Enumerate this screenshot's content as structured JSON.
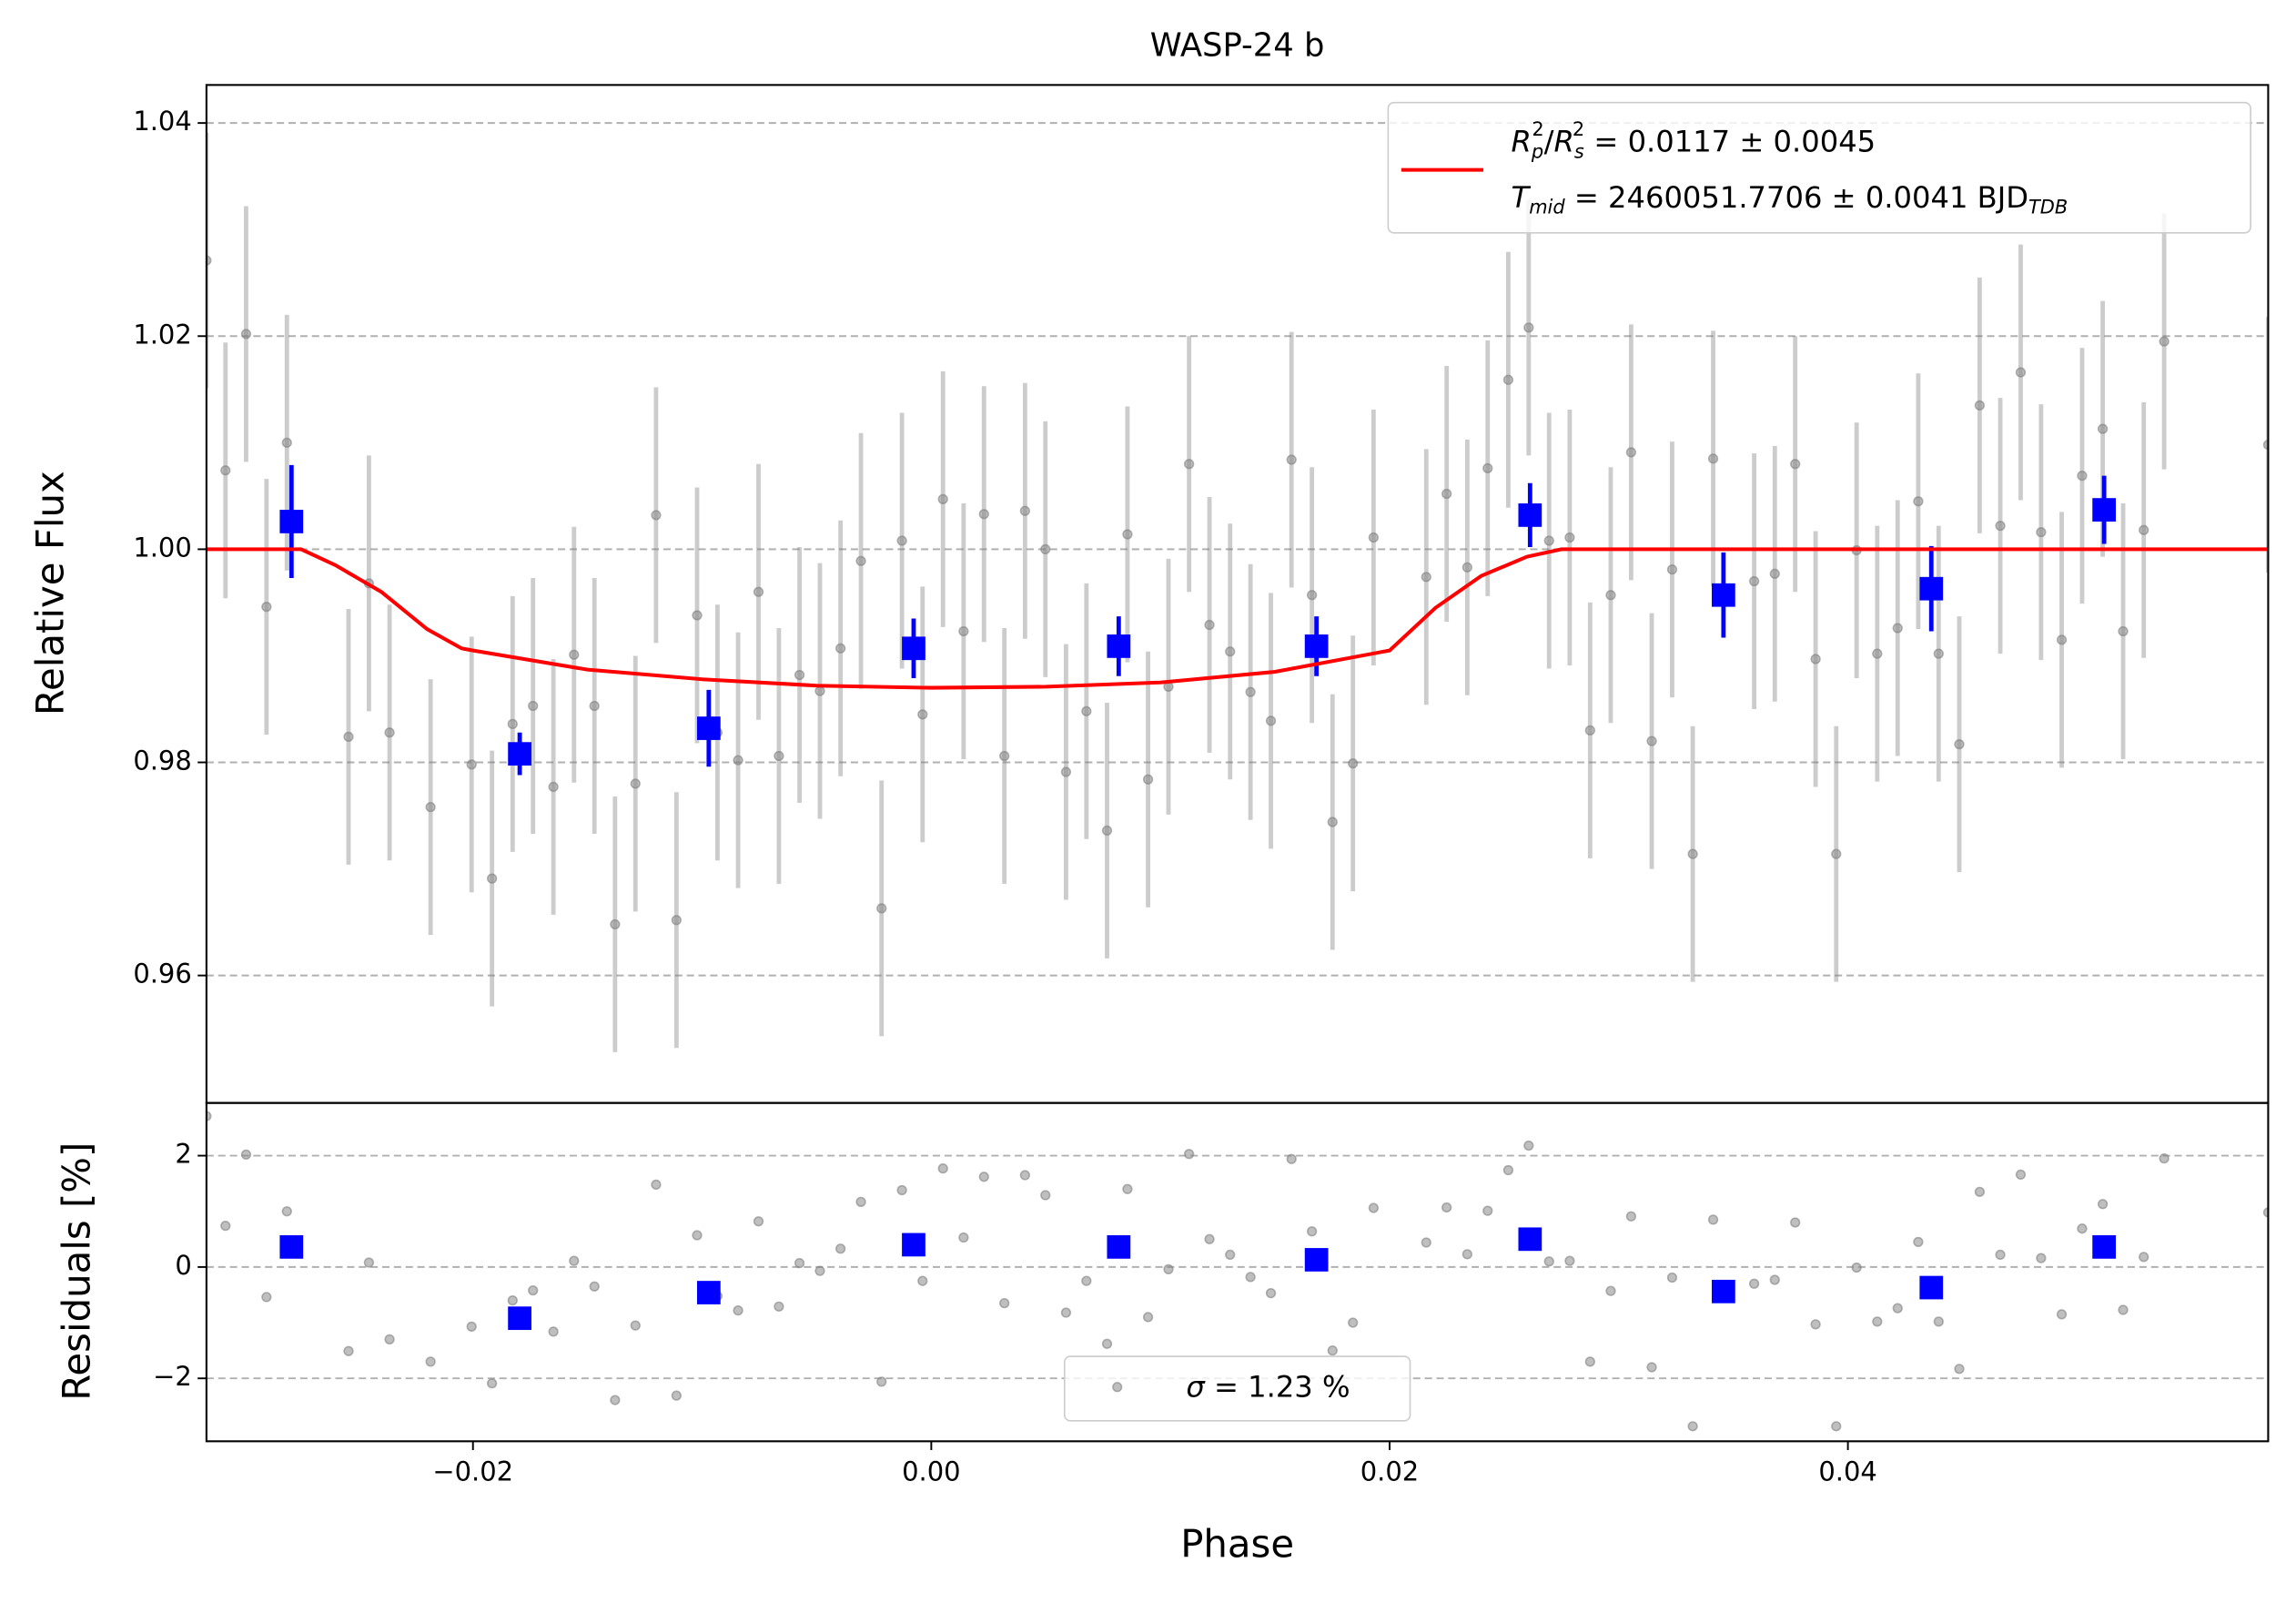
{
  "chart_data": [
    {
      "type": "scatter",
      "title": "WASP-24 b",
      "ylabel": "Relative Flux",
      "xlim": [
        -0.03163,
        0.05834
      ],
      "ylim": [
        0.94804,
        1.04357
      ],
      "yticks": [
        {
          "value": 0.96,
          "label": "0.96"
        },
        {
          "value": 0.98,
          "label": "0.98"
        },
        {
          "value": 1.0,
          "label": "1.00"
        },
        {
          "value": 1.02,
          "label": "1.02"
        },
        {
          "value": 1.04,
          "label": "1.04"
        }
      ],
      "grid": true,
      "legend_loc": "upper right",
      "series": [
        {
          "kind": "points",
          "color": "#808080",
          "x": [
            -0.03163,
            -0.0308,
            -0.0299,
            -0.02901,
            -0.02812,
            -0.02543,
            -0.02454,
            -0.02364,
            -0.02185,
            -0.02006,
            -0.01917,
            -0.01827,
            -0.01738,
            -0.01649,
            -0.01559,
            -0.0147,
            -0.0138,
            -0.01291,
            -0.01201,
            -0.01112,
            -0.01022,
            -0.00933,
            -0.00843,
            -0.00754,
            -0.00665,
            -0.00575,
            -0.00486,
            -0.00396,
            -0.00307,
            -0.00217,
            -0.00128,
            -0.00038,
            0.00051,
            0.00141,
            0.0023,
            0.00319,
            0.00409,
            0.00498,
            0.00588,
            0.00677,
            0.00767,
            0.00856,
            0.00946,
            0.01035,
            0.01125,
            0.01214,
            0.01304,
            0.01393,
            0.01482,
            0.01572,
            0.01661,
            0.01751,
            0.0184,
            0.0193,
            0.0216,
            0.02249,
            0.02339,
            0.02428,
            0.02518,
            0.02607,
            0.02696,
            0.02786,
            0.02875,
            0.02965,
            0.03054,
            0.03144,
            0.03233,
            0.03323,
            0.03412,
            0.03591,
            0.03681,
            0.0377,
            0.03859,
            0.03949,
            0.04038,
            0.04128,
            0.04217,
            0.04307,
            0.04396,
            0.04486,
            0.04575,
            0.04665,
            0.04754,
            0.04843,
            0.04933,
            0.05022,
            0.05112,
            0.05201,
            0.05291,
            0.0538,
            0.05834
          ],
          "values": [
            1.0271,
            1.0074,
            1.0202,
            0.9946,
            1.01,
            0.9824,
            0.9968,
            0.9828,
            0.9758,
            0.9798,
            0.9691,
            0.9836,
            0.9853,
            0.9777,
            0.9901,
            0.9853,
            0.9648,
            0.978,
            1.0032,
            0.9652,
            0.9938,
            0.9828,
            0.9802,
            0.996,
            0.9806,
            0.9882,
            0.9867,
            0.9907,
            0.9989,
            0.9663,
            1.0008,
            0.9845,
            1.0047,
            0.9923,
            1.0033,
            0.9806,
            1.0036,
            1.0,
            0.9791,
            0.9848,
            0.9736,
            1.0014,
            0.9784,
            0.9871,
            1.008,
            0.9929,
            0.9904,
            0.9866,
            0.9839,
            1.0084,
            0.9957,
            0.9744,
            0.9799,
            1.0011,
            0.9974,
            1.0052,
            0.9983,
            1.0076,
            1.0159,
            1.0208,
            1.0008,
            1.0011,
            0.983,
            0.9957,
            1.0091,
            0.982,
            0.9981,
            0.9714,
            1.0085,
            0.997,
            0.9977,
            1.008,
            0.9897,
            0.9714,
            0.9999,
            0.9902,
            0.9926,
            1.0045,
            0.9902,
            0.9817,
            1.0135,
            1.0022,
            1.0166,
            1.0016,
            0.9915,
            1.0069,
            1.0113,
            0.9923,
            1.0018,
            1.0195,
            1.0098
          ],
          "error": 0.012
        },
        {
          "kind": "binned",
          "color": "#0000ff",
          "x": [
            -0.02792,
            -0.01796,
            -0.00971,
            -0.00077,
            0.00818,
            0.01681,
            0.02613,
            0.03457,
            0.04364,
            0.05118
          ],
          "values": [
            1.0026,
            0.9808,
            0.9832,
            0.9907,
            0.9909,
            0.9909,
            1.0032,
            0.9957,
            0.9963,
            1.0037
          ],
          "errors": [
            0.0053,
            0.002,
            0.0036,
            0.0028,
            0.0028,
            0.0028,
            0.003,
            0.004,
            0.004,
            0.0032
          ]
        },
        {
          "kind": "line",
          "color": "#ff0000",
          "name_parts": [
            "R",
            "p",
            "2",
            "/",
            "R",
            "s",
            "2",
            " = 0.0117 ± 0.0045",
            "T",
            "mid",
            " = 2460051.7706 ± 0.0041 BJD",
            "TDB"
          ],
          "x": [
            -0.03163,
            -0.0275,
            -0.026,
            -0.024,
            -0.022,
            -0.0205,
            -0.02,
            -0.015,
            -0.01,
            -0.005,
            0,
            0.005,
            0.01,
            0.015,
            0.0195,
            0.02,
            0.022,
            0.024,
            0.026,
            0.0275,
            0.05834
          ],
          "values": [
            1.0,
            1.0,
            0.9985,
            0.996,
            0.9925,
            0.9907,
            0.9905,
            0.9887,
            0.9878,
            0.9872,
            0.987,
            0.9871,
            0.9875,
            0.9885,
            0.9903,
            0.9905,
            0.9945,
            0.9975,
            0.9993,
            1.0,
            1.0
          ]
        }
      ]
    },
    {
      "type": "scatter",
      "ylabel": "Residuals [%]",
      "xlabel": "Phase",
      "xlim": [
        -0.03163,
        0.05834
      ],
      "ylim": [
        -3.13,
        2.947
      ],
      "xticks": [
        {
          "value": -0.02,
          "label": "−0.02"
        },
        {
          "value": 0,
          "label": "0.00"
        },
        {
          "value": 0.02,
          "label": "0.02"
        },
        {
          "value": 0.04,
          "label": "0.04"
        }
      ],
      "yticks": [
        {
          "value": -2,
          "label": "−2"
        },
        0,
        2
      ],
      "grid": true,
      "legend_loc": "lower center",
      "legend_parts": [
        "σ",
        " = 1.23 %"
      ],
      "series": [
        {
          "kind": "points",
          "color": "#808080",
          "values": [
            2.71,
            0.74,
            2.02,
            -0.54,
            1.0,
            -1.51,
            0.08,
            -1.3,
            -1.7,
            -1.07,
            -2.09,
            -0.6,
            -0.42,
            -1.16,
            0.11,
            -0.35,
            -2.39,
            -1.05,
            1.48,
            -2.31,
            0.57,
            -0.52,
            -0.78,
            0.82,
            -0.71,
            0.07,
            -0.07,
            0.33,
            1.17,
            -2.06,
            1.38,
            -0.25,
            1.77,
            0.53,
            1.62,
            -0.65,
            1.65,
            1.29,
            -0.82,
            -0.25,
            -1.38,
            1.4,
            -0.9,
            -0.04,
            2.03,
            0.5,
            0.22,
            -0.18,
            -0.47,
            1.94,
            0.64,
            -1.5,
            -1.0,
            1.06,
            0.44,
            1.07,
            0.23,
            1.01,
            1.74,
            2.18,
            0.1,
            0.11,
            -1.7,
            -0.43,
            0.91,
            -1.8,
            -0.19,
            -2.86,
            0.85,
            -0.3,
            -0.23,
            0.8,
            -1.03,
            -2.86,
            -0.01,
            -0.98,
            -0.74,
            0.45,
            -0.98,
            -1.83,
            1.35,
            0.22,
            1.66,
            0.16,
            -0.85,
            0.69,
            1.13,
            -0.77,
            0.18,
            1.95,
            0.98
          ]
        },
        {
          "kind": "binned",
          "color": "#0000ff",
          "values": [
            0.36,
            -0.92,
            -0.46,
            0.4,
            0.36,
            0.13,
            0.5,
            -0.44,
            -0.37,
            0.36
          ]
        }
      ]
    }
  ]
}
